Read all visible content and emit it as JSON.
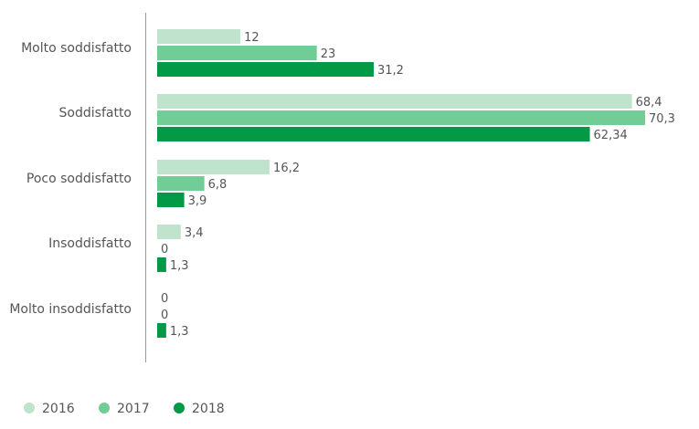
{
  "chart_data": {
    "type": "bar",
    "orientation": "horizontal",
    "categories": [
      "Molto soddisfatto",
      "Soddisfatto",
      "Poco soddisfatto",
      "Insoddisfatto",
      "Molto insoddisfatto"
    ],
    "series": [
      {
        "name": "2016",
        "color": "#bfe3cc",
        "values": [
          12,
          68.4,
          16.2,
          3.4,
          0
        ],
        "labels": [
          "12",
          "68,4",
          "16,2",
          "3,4",
          "0"
        ]
      },
      {
        "name": "2017",
        "color": "#72cc96",
        "values": [
          23,
          70.3,
          6.8,
          0,
          0
        ],
        "labels": [
          "23",
          "70,3",
          "6,8",
          "0",
          "0"
        ]
      },
      {
        "name": "2018",
        "color": "#039a47",
        "values": [
          31.2,
          62.34,
          3.9,
          1.3,
          1.3
        ],
        "labels": [
          "31,2",
          "62,34",
          "3,9",
          "1,3",
          "1,3"
        ]
      }
    ],
    "xlim": [
      0,
      70.3
    ],
    "grid": false,
    "legend_position": "bottom-left",
    "axis_color": "#9a9a9a"
  }
}
